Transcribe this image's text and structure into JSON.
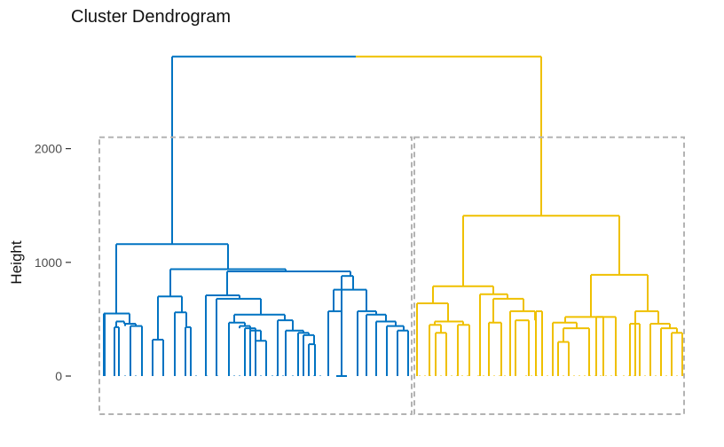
{
  "chart_data": {
    "type": "dendrogram",
    "title": "Cluster Dendrogram",
    "xlabel": "",
    "ylabel": "Height",
    "ylim": [
      -340,
      2800
    ],
    "yticks": [
      0,
      1000,
      2000
    ],
    "ytick_labels": [
      "0",
      "1000",
      "2000"
    ],
    "grid": false,
    "n_leaves": 57,
    "cut_height": 2100,
    "clusters": [
      {
        "leaves": [
          1,
          29
        ],
        "color": "#0073C2"
      },
      {
        "leaves": [
          30,
          57
        ],
        "color": "#EFC000"
      }
    ],
    "root_height": 2810,
    "merges": [
      {
        "height": 2810,
        "left_x": 194,
        "right_x": 610,
        "left_child_h": 1160,
        "right_child_h": 1410
      },
      {
        "height": 1160,
        "left_x": 131,
        "right_x": 257,
        "left_child_h": 550,
        "right_child_h": 940
      },
      {
        "height": 940,
        "left_x": 192,
        "right_x": 322,
        "left_child_h": 700,
        "right_child_h": 920
      },
      {
        "height": 920,
        "left_x": 256,
        "right_x": 395,
        "left_child_h": 710,
        "right_child_h": 880
      },
      {
        "height": 880,
        "left_x": 385,
        "right_x": 398,
        "left_child_h": 0,
        "right_child_h": 760
      },
      {
        "height": 760,
        "left_x": 376,
        "right_x": 413,
        "left_child_h": 570,
        "right_child_h": 570
      },
      {
        "height": 570,
        "left_x": 370,
        "right_x": 376,
        "left_child_h": 0,
        "right_child_h": 0
      },
      {
        "height": 570,
        "left_x": 403,
        "right_x": 424,
        "left_child_h": 0,
        "right_child_h": 540
      },
      {
        "height": 540,
        "left_x": 413,
        "right_x": 435,
        "left_child_h": 0,
        "right_child_h": 480
      },
      {
        "height": 480,
        "left_x": 424,
        "right_x": 446,
        "left_child_h": 0,
        "right_child_h": 440
      },
      {
        "height": 440,
        "left_x": 436,
        "right_x": 455,
        "left_child_h": 0,
        "right_child_h": 400
      },
      {
        "height": 400,
        "left_x": 448,
        "right_x": 460,
        "left_child_h": 0,
        "right_child_h": 0
      },
      {
        "height": 710,
        "left_x": 232,
        "right_x": 294,
        "left_child_h": 0,
        "right_child_h": 680
      },
      {
        "height": 680,
        "left_x": 244,
        "right_x": 294,
        "left_child_h": 0,
        "right_child_h": 540
      },
      {
        "height": 540,
        "left_x": 265,
        "right_x": 321,
        "left_child_h": 0,
        "right_child_h": 0
      },
      {
        "height": 700,
        "left_x": 178,
        "right_x": 205,
        "left_child_h": 320,
        "right_child_h": 560
      },
      {
        "height": 1410,
        "left_x": 522,
        "right_x": 698,
        "left_child_h": 790,
        "right_child_h": 890
      },
      {
        "height": 790,
        "left_x": 488,
        "right_x": 556,
        "left_child_h": 640,
        "right_child_h": 720
      },
      {
        "height": 890,
        "left_x": 666,
        "right_x": 730,
        "left_child_h": 520,
        "right_child_h": 570
      },
      {
        "height": 570,
        "left_x": 718,
        "right_x": 742,
        "left_child_h": 0,
        "right_child_h": 460
      },
      {
        "height": 520,
        "left_x": 637,
        "right_x": 694,
        "left_child_h": 0,
        "right_child_h": 0
      }
    ]
  }
}
